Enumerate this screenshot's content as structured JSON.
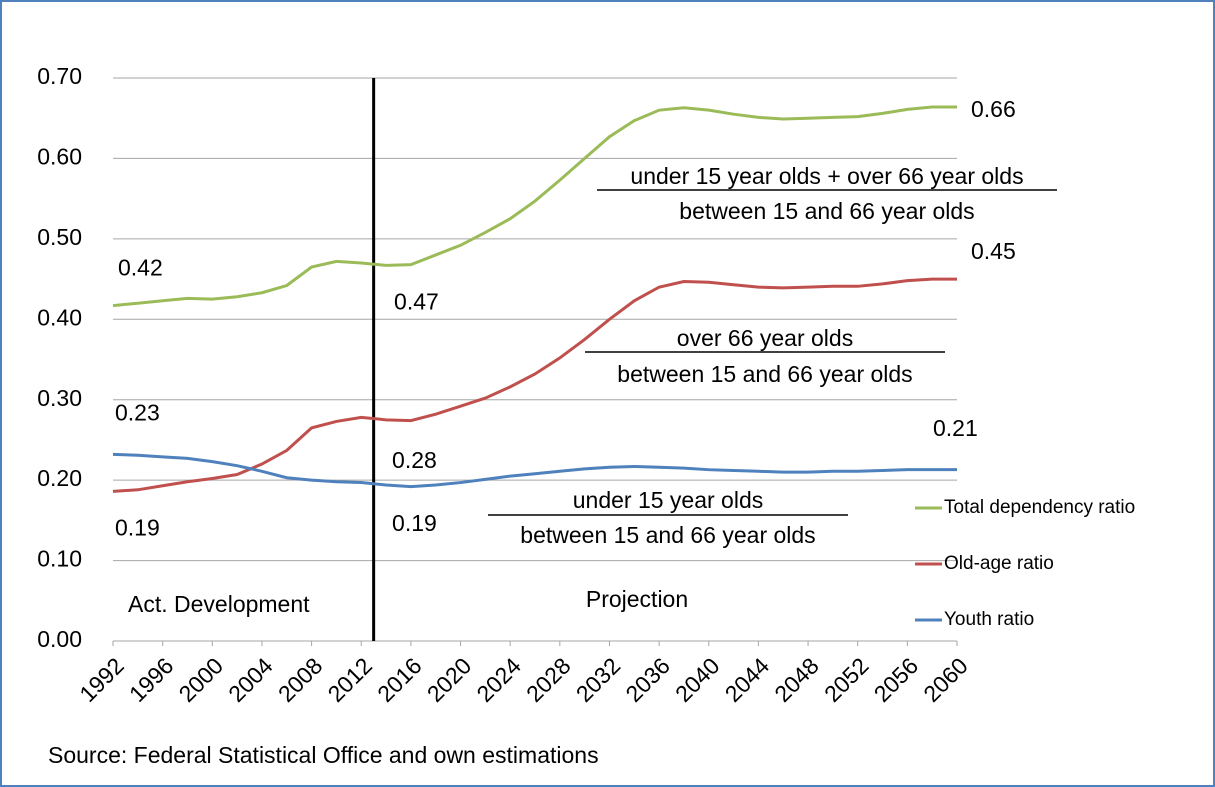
{
  "chart_data": {
    "type": "line",
    "x": [
      1992,
      1994,
      1996,
      1998,
      2000,
      2002,
      2004,
      2006,
      2008,
      2010,
      2012,
      2014,
      2016,
      2018,
      2020,
      2022,
      2024,
      2026,
      2028,
      2030,
      2032,
      2034,
      2036,
      2038,
      2040,
      2042,
      2044,
      2046,
      2048,
      2050,
      2052,
      2054,
      2056,
      2058,
      2060
    ],
    "series": [
      {
        "name": "Total dependency ratio",
        "color": "#9bbb59",
        "values": [
          0.417,
          0.42,
          0.423,
          0.426,
          0.425,
          0.428,
          0.433,
          0.442,
          0.465,
          0.472,
          0.47,
          0.467,
          0.468,
          0.48,
          0.492,
          0.508,
          0.525,
          0.547,
          0.573,
          0.6,
          0.627,
          0.647,
          0.66,
          0.663,
          0.66,
          0.655,
          0.651,
          0.649,
          0.65,
          0.651,
          0.652,
          0.656,
          0.661,
          0.664,
          0.664
        ],
        "value_labels": [
          "0.42",
          null,
          null,
          null,
          null,
          null,
          null,
          null,
          null,
          null,
          null,
          "0.47",
          null,
          null,
          null,
          null,
          null,
          null,
          null,
          null,
          null,
          null,
          null,
          null,
          null,
          null,
          null,
          null,
          null,
          null,
          null,
          null,
          null,
          null,
          "0.66"
        ]
      },
      {
        "name": "Old-age ratio",
        "color": "#c0504d",
        "values": [
          0.186,
          0.188,
          0.193,
          0.198,
          0.202,
          0.207,
          0.22,
          0.237,
          0.265,
          0.273,
          0.278,
          0.275,
          0.274,
          0.282,
          0.292,
          0.302,
          0.316,
          0.332,
          0.352,
          0.375,
          0.4,
          0.423,
          0.44,
          0.447,
          0.446,
          0.443,
          0.44,
          0.439,
          0.44,
          0.441,
          0.441,
          0.444,
          0.448,
          0.45,
          0.45
        ],
        "value_labels": [
          "0.19",
          null,
          null,
          null,
          null,
          null,
          null,
          null,
          null,
          null,
          null,
          "0.28",
          null,
          null,
          null,
          null,
          null,
          null,
          null,
          null,
          null,
          null,
          null,
          null,
          null,
          null,
          null,
          null,
          null,
          null,
          null,
          null,
          null,
          null,
          "0.45"
        ]
      },
      {
        "name": "Youth ratio",
        "color": "#4f81bd",
        "values": [
          0.232,
          0.231,
          0.229,
          0.227,
          0.223,
          0.218,
          0.211,
          0.203,
          0.2,
          0.198,
          0.197,
          0.194,
          0.192,
          0.194,
          0.197,
          0.201,
          0.205,
          0.208,
          0.211,
          0.214,
          0.216,
          0.217,
          0.216,
          0.215,
          0.213,
          0.212,
          0.211,
          0.21,
          0.21,
          0.211,
          0.211,
          0.212,
          0.213,
          0.213,
          0.213
        ],
        "value_labels": [
          "0.23",
          null,
          null,
          null,
          null,
          null,
          null,
          null,
          null,
          null,
          null,
          "0.19",
          null,
          null,
          null,
          null,
          null,
          null,
          null,
          null,
          null,
          null,
          null,
          null,
          null,
          null,
          null,
          null,
          null,
          null,
          null,
          null,
          null,
          null,
          "0.21"
        ]
      }
    ],
    "xlim": [
      1992,
      2060
    ],
    "xticks": [
      1992,
      1996,
      2000,
      2004,
      2008,
      2012,
      2016,
      2020,
      2024,
      2028,
      2032,
      2036,
      2040,
      2044,
      2048,
      2052,
      2056,
      2060
    ],
    "ylim": [
      0,
      0.7
    ],
    "yticks": [
      {
        "value": 0,
        "label": "0.00"
      },
      {
        "value": 0.1,
        "label": "0.10"
      },
      {
        "value": 0.2,
        "label": "0.20"
      },
      {
        "value": 0.3,
        "label": "0.30"
      },
      {
        "value": 0.4,
        "label": "0.40"
      },
      {
        "value": 0.5,
        "label": "0.50"
      },
      {
        "value": 0.6,
        "label": "0.60"
      },
      {
        "value": 0.7,
        "label": "0.70"
      }
    ],
    "grid": true,
    "legend": "right",
    "divider_x": 2013,
    "periods": [
      "Act. Development",
      "Projection"
    ],
    "formulas": [
      {
        "numerator": "under 15 year olds + over 66 year olds",
        "denominator": "between 15 and 66 year olds"
      },
      {
        "numerator": "over 66 year olds",
        "denominator": "between 15 and 66 year olds"
      },
      {
        "numerator": "under 15 year olds",
        "denominator": "between 15 and 66 year olds"
      }
    ],
    "source": "Source: Federal Statistical Office and own estimations"
  }
}
